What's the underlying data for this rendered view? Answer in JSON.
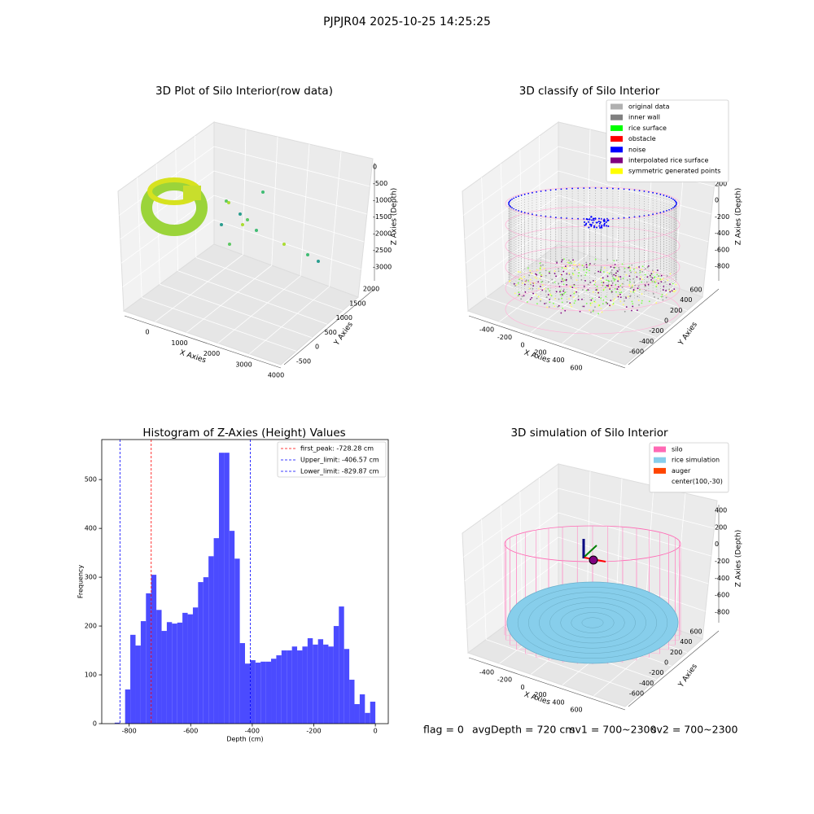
{
  "title": "PJPJR04 2025-10-25 14:25:25",
  "status": [
    "flag = 0",
    "avgDepth = 720 cm",
    "sv1 = 700~2300",
    "sv2 = 700~2300"
  ],
  "chart_data": [
    {
      "type": "scatter3d",
      "title": "3D Plot of Silo Interior(row data)",
      "xlabel": "X Axies",
      "ylabel": "Y Axies",
      "zlabel": "Z Axies (Depth)",
      "xticks": [
        0,
        1000,
        2000,
        3000,
        4000
      ],
      "yticks": [
        -500,
        0,
        500,
        1000,
        1500,
        2000
      ],
      "zticks": [
        0,
        -500,
        -1000,
        -1500,
        -2000,
        -2500,
        -3000
      ]
    },
    {
      "type": "scatter3d",
      "title": "3D classify of Silo Interior",
      "xlabel": "X Axies",
      "ylabel": "Y Axies",
      "zlabel": "Z Axies (Depth)",
      "xticks": [
        -400,
        -200,
        0,
        200,
        400,
        600
      ],
      "yticks": [
        -600,
        -400,
        -200,
        0,
        200,
        400,
        600
      ],
      "zticks": [
        200,
        0,
        -200,
        -400,
        -600,
        -800
      ],
      "legend_position": "upper right",
      "legend": [
        {
          "name": "original data",
          "color": "#b0b0b0"
        },
        {
          "name": "inner wall",
          "color": "#808080"
        },
        {
          "name": "rice surface",
          "color": "#00ff00"
        },
        {
          "name": "obstacle",
          "color": "#ff0000"
        },
        {
          "name": "noise",
          "color": "#0000ff"
        },
        {
          "name": "interpolated rice surface",
          "color": "#800080"
        },
        {
          "name": "symmetric generated points",
          "color": "#ffff00"
        }
      ]
    },
    {
      "type": "histogram",
      "title": "Histogram of Z-Axies (Height) Values",
      "xlabel": "Depth (cm)",
      "ylabel": "Frequency",
      "color": "#4b4bff",
      "bins": [
        -847.0,
        -830.1,
        -813.1,
        -796.2,
        -779.2,
        -762.3,
        -745.4,
        -728.4,
        -711.5,
        -694.5,
        -677.6,
        -660.7,
        -643.7,
        -626.8,
        -609.8,
        -592.9,
        -576.0,
        -559.0,
        -542.1,
        -525.1,
        -508.2,
        -491.3,
        -474.3,
        -457.4,
        -440.4,
        -423.5,
        -406.6,
        -389.6,
        -372.7,
        -355.7,
        -338.8,
        -321.9,
        -304.9,
        -288.0,
        -271.0,
        -254.1,
        -237.2,
        -220.2,
        -203.3,
        -186.3,
        -169.4,
        -152.5,
        -135.5,
        -118.6,
        -101.6,
        -84.7,
        -67.8,
        -50.8,
        -33.9,
        -16.9,
        0
      ],
      "counts": [
        2,
        0,
        70,
        182,
        160,
        210,
        267,
        305,
        233,
        190,
        208,
        205,
        207,
        227,
        224,
        238,
        290,
        300,
        343,
        380,
        555,
        555,
        395,
        338,
        165,
        123,
        130,
        125,
        127,
        127,
        133,
        140,
        150,
        150,
        158,
        150,
        158,
        175,
        162,
        173,
        162,
        158,
        200,
        240,
        153,
        90,
        40,
        60,
        22,
        45
      ],
      "xlim": [
        -889,
        42
      ],
      "ylim": [
        0,
        582
      ],
      "xticks": [
        -800,
        -600,
        -400,
        -200,
        0
      ],
      "yticks": [
        0,
        100,
        200,
        300,
        400,
        500
      ],
      "legend_position": "upper right",
      "vlines": [
        {
          "value": -728.28,
          "label": "first_peak: -728.28 cm",
          "color": "#ff0000"
        },
        {
          "value": -406.57,
          "label": "Upper_limit: -406.57 cm",
          "color": "#0000ff"
        },
        {
          "value": -829.87,
          "label": "Lower_limit: -829.87 cm",
          "color": "#0000ff"
        }
      ]
    },
    {
      "type": "surface3d",
      "title": "3D simulation of Silo Interior",
      "xlabel": "X Axies",
      "ylabel": "Y Axies",
      "zlabel": "Z Axies (Depth)",
      "xticks": [
        -400,
        -200,
        0,
        200,
        400,
        600
      ],
      "yticks": [
        -600,
        -400,
        -200,
        0,
        200,
        400,
        600
      ],
      "zticks": [
        400,
        200,
        0,
        -200,
        -400,
        -600,
        -800
      ],
      "legend_position": "upper right",
      "legend": [
        {
          "name": "silo",
          "color": "#ff69b4"
        },
        {
          "name": "rice simulation",
          "color": "#87ceeb"
        },
        {
          "name": "auger",
          "color": "#ff4500"
        },
        {
          "name": "center(100,-30)",
          "color": "#ffffff"
        }
      ]
    }
  ]
}
